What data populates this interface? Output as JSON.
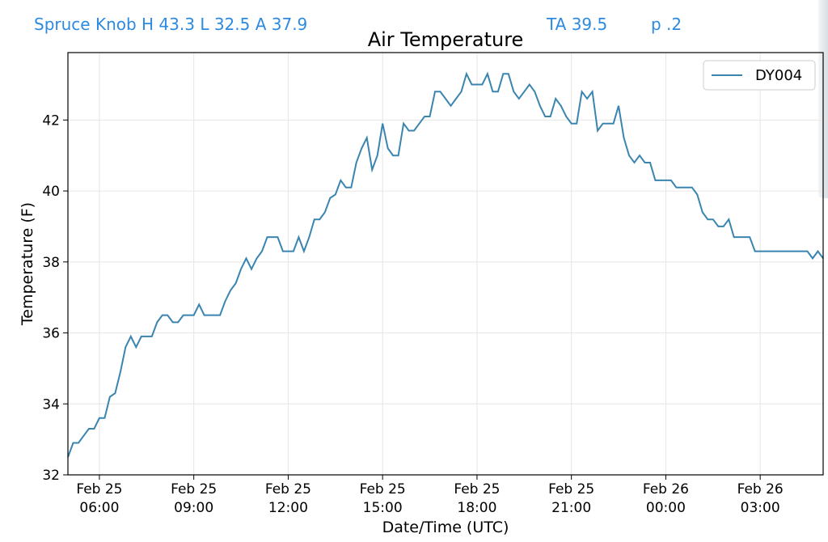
{
  "header": {
    "station_line": "Spruce Knob H 43.3 L 32.5 A 37.9",
    "ta": "TA 39.5",
    "page": "p .2"
  },
  "colors": {
    "accent_text": "#2d8ae0",
    "series_line": "#3a85b0",
    "grid": "#e6e6e6",
    "axes": "#000000"
  },
  "chart_data": {
    "type": "line",
    "title": "Air Temperature",
    "xlabel": "Date/Time (UTC)",
    "ylabel": "Temperature (F)",
    "grid": true,
    "legend": {
      "position": "top-right"
    },
    "x_range": [
      "2023-02-25T05:00",
      "2023-02-26T05:00"
    ],
    "ylim": [
      32,
      43.9
    ],
    "y_ticks": [
      32,
      34,
      36,
      38,
      40,
      42
    ],
    "x_ticks": [
      {
        "t": "2023-02-25T06:00",
        "line1": "Feb 25",
        "line2": "06:00"
      },
      {
        "t": "2023-02-25T09:00",
        "line1": "Feb 25",
        "line2": "09:00"
      },
      {
        "t": "2023-02-25T12:00",
        "line1": "Feb 25",
        "line2": "12:00"
      },
      {
        "t": "2023-02-25T15:00",
        "line1": "Feb 25",
        "line2": "15:00"
      },
      {
        "t": "2023-02-25T18:00",
        "line1": "Feb 25",
        "line2": "18:00"
      },
      {
        "t": "2023-02-25T21:00",
        "line1": "Feb 25",
        "line2": "21:00"
      },
      {
        "t": "2023-02-26T00:00",
        "line1": "Feb 26",
        "line2": "00:00"
      },
      {
        "t": "2023-02-26T03:00",
        "line1": "Feb 26",
        "line2": "03:00"
      }
    ],
    "series": [
      {
        "name": "DY004",
        "x": [
          "2023-02-25T05:00",
          "2023-02-25T05:10",
          "2023-02-25T05:20",
          "2023-02-25T05:30",
          "2023-02-25T05:40",
          "2023-02-25T05:50",
          "2023-02-25T06:00",
          "2023-02-25T06:10",
          "2023-02-25T06:20",
          "2023-02-25T06:30",
          "2023-02-25T06:40",
          "2023-02-25T06:50",
          "2023-02-25T07:00",
          "2023-02-25T07:10",
          "2023-02-25T07:20",
          "2023-02-25T07:30",
          "2023-02-25T07:40",
          "2023-02-25T07:50",
          "2023-02-25T08:00",
          "2023-02-25T08:10",
          "2023-02-25T08:20",
          "2023-02-25T08:30",
          "2023-02-25T08:40",
          "2023-02-25T08:50",
          "2023-02-25T09:00",
          "2023-02-25T09:10",
          "2023-02-25T09:20",
          "2023-02-25T09:30",
          "2023-02-25T09:40",
          "2023-02-25T09:50",
          "2023-02-25T10:00",
          "2023-02-25T10:10",
          "2023-02-25T10:20",
          "2023-02-25T10:30",
          "2023-02-25T10:40",
          "2023-02-25T10:50",
          "2023-02-25T11:00",
          "2023-02-25T11:10",
          "2023-02-25T11:20",
          "2023-02-25T11:30",
          "2023-02-25T11:40",
          "2023-02-25T11:50",
          "2023-02-25T12:00",
          "2023-02-25T12:10",
          "2023-02-25T12:20",
          "2023-02-25T12:30",
          "2023-02-25T12:40",
          "2023-02-25T12:50",
          "2023-02-25T13:00",
          "2023-02-25T13:10",
          "2023-02-25T13:20",
          "2023-02-25T13:30",
          "2023-02-25T13:40",
          "2023-02-25T13:50",
          "2023-02-25T14:00",
          "2023-02-25T14:10",
          "2023-02-25T14:20",
          "2023-02-25T14:30",
          "2023-02-25T14:40",
          "2023-02-25T14:50",
          "2023-02-25T15:00",
          "2023-02-25T15:10",
          "2023-02-25T15:20",
          "2023-02-25T15:30",
          "2023-02-25T15:40",
          "2023-02-25T15:50",
          "2023-02-25T16:00",
          "2023-02-25T16:10",
          "2023-02-25T16:20",
          "2023-02-25T16:30",
          "2023-02-25T16:40",
          "2023-02-25T16:50",
          "2023-02-25T17:00",
          "2023-02-25T17:10",
          "2023-02-25T17:20",
          "2023-02-25T17:30",
          "2023-02-25T17:40",
          "2023-02-25T17:50",
          "2023-02-25T18:00",
          "2023-02-25T18:10",
          "2023-02-25T18:20",
          "2023-02-25T18:30",
          "2023-02-25T18:40",
          "2023-02-25T18:50",
          "2023-02-25T19:00",
          "2023-02-25T19:10",
          "2023-02-25T19:20",
          "2023-02-25T19:30",
          "2023-02-25T19:40",
          "2023-02-25T19:50",
          "2023-02-25T20:00",
          "2023-02-25T20:10",
          "2023-02-25T20:20",
          "2023-02-25T20:30",
          "2023-02-25T20:40",
          "2023-02-25T20:50",
          "2023-02-25T21:00",
          "2023-02-25T21:10",
          "2023-02-25T21:20",
          "2023-02-25T21:30",
          "2023-02-25T21:40",
          "2023-02-25T21:50",
          "2023-02-25T22:00",
          "2023-02-25T22:10",
          "2023-02-25T22:20",
          "2023-02-25T22:30",
          "2023-02-25T22:40",
          "2023-02-25T22:50",
          "2023-02-25T23:00",
          "2023-02-25T23:10",
          "2023-02-25T23:20",
          "2023-02-25T23:30",
          "2023-02-25T23:40",
          "2023-02-25T23:50",
          "2023-02-26T00:00",
          "2023-02-26T00:10",
          "2023-02-26T00:20",
          "2023-02-26T00:30",
          "2023-02-26T00:40",
          "2023-02-26T00:50",
          "2023-02-26T01:00",
          "2023-02-26T01:10",
          "2023-02-26T01:20",
          "2023-02-26T01:30",
          "2023-02-26T01:40",
          "2023-02-26T01:50",
          "2023-02-26T02:00",
          "2023-02-26T02:10",
          "2023-02-26T02:20",
          "2023-02-26T02:30",
          "2023-02-26T02:40",
          "2023-02-26T02:50",
          "2023-02-26T03:00",
          "2023-02-26T03:10",
          "2023-02-26T03:20",
          "2023-02-26T03:30",
          "2023-02-26T03:40",
          "2023-02-26T03:50",
          "2023-02-26T04:00",
          "2023-02-26T04:10",
          "2023-02-26T04:20",
          "2023-02-26T04:30",
          "2023-02-26T04:40",
          "2023-02-26T04:50",
          "2023-02-26T05:00"
        ],
        "y": [
          32.5,
          32.9,
          32.9,
          33.1,
          33.3,
          33.3,
          33.6,
          33.6,
          34.2,
          34.3,
          34.9,
          35.6,
          35.9,
          35.6,
          35.9,
          35.9,
          35.9,
          36.3,
          36.5,
          36.5,
          36.3,
          36.3,
          36.5,
          36.5,
          36.5,
          36.8,
          36.5,
          36.5,
          36.5,
          36.5,
          36.9,
          37.2,
          37.4,
          37.8,
          38.1,
          37.8,
          38.1,
          38.3,
          38.7,
          38.7,
          38.7,
          38.3,
          38.3,
          38.3,
          38.7,
          38.3,
          38.7,
          39.2,
          39.2,
          39.4,
          39.8,
          39.9,
          40.3,
          40.1,
          40.1,
          40.8,
          41.2,
          41.5,
          40.6,
          41.0,
          41.9,
          41.2,
          41.0,
          41.0,
          41.9,
          41.7,
          41.7,
          41.9,
          42.1,
          42.1,
          42.8,
          42.8,
          42.6,
          42.4,
          42.6,
          42.8,
          43.3,
          43.0,
          43.0,
          43.0,
          43.3,
          42.8,
          42.8,
          43.3,
          43.3,
          42.8,
          42.6,
          42.8,
          43.0,
          42.8,
          42.4,
          42.1,
          42.1,
          42.6,
          42.4,
          42.1,
          41.9,
          41.9,
          42.8,
          42.6,
          42.8,
          41.7,
          41.9,
          41.9,
          41.9,
          42.4,
          41.5,
          41.0,
          40.8,
          41.0,
          40.8,
          40.8,
          40.3,
          40.3,
          40.3,
          40.3,
          40.1,
          40.1,
          40.1,
          40.1,
          39.9,
          39.4,
          39.2,
          39.2,
          39.0,
          39.0,
          39.2,
          38.7,
          38.7,
          38.7,
          38.7,
          38.3,
          38.3,
          38.3,
          38.3,
          38.3,
          38.3,
          38.3,
          38.3,
          38.3,
          38.3,
          38.3,
          38.1,
          38.3,
          38.1
        ]
      }
    ]
  }
}
